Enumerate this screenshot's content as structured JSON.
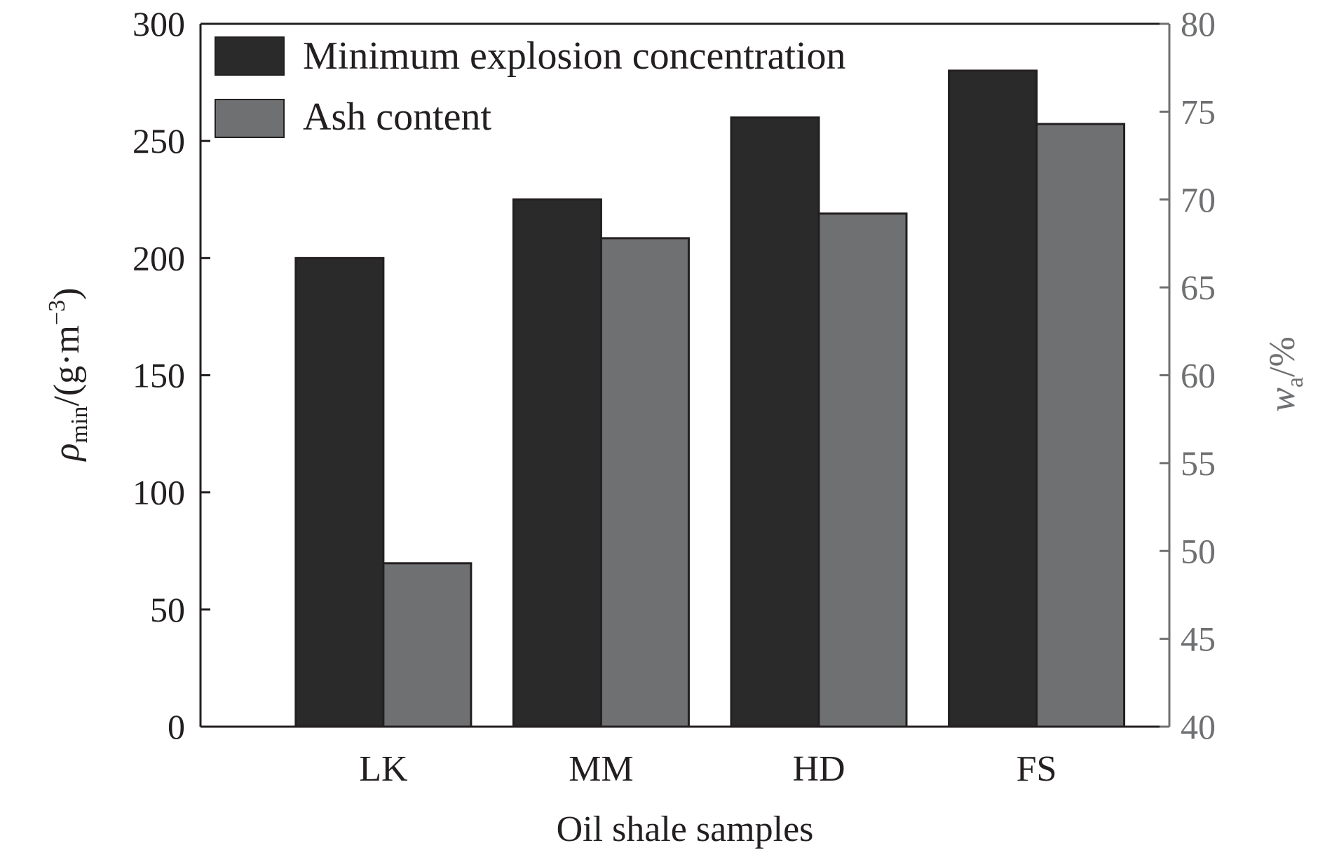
{
  "chart_data": {
    "type": "bar",
    "categories": [
      "LK",
      "MM",
      "HD",
      "FS"
    ],
    "series": [
      {
        "name": "Minimum explosion concentration",
        "axis": "left",
        "color": "#2b2a2b",
        "values": [
          200,
          225,
          260,
          280
        ]
      },
      {
        "name": "Ash content",
        "axis": "right",
        "color": "#6f7072",
        "values": [
          49.3,
          67.8,
          69.2,
          74.3
        ]
      }
    ],
    "xlabel": "Oil shale samples",
    "ylabel_left": {
      "symbol": "ρ",
      "sub": "min",
      "rest": "/(g·m",
      "sup": "−3",
      "close": ")"
    },
    "ylabel_right": {
      "symbol": "w",
      "sub": "a",
      "rest": "/%"
    },
    "ylim_left": [
      0,
      300
    ],
    "yticks_left": [
      "0",
      "50",
      "100",
      "150",
      "200",
      "250",
      "300"
    ],
    "ylim_right": [
      40,
      80
    ],
    "yticks_right": [
      "40",
      "45",
      "50",
      "55",
      "60",
      "65",
      "70",
      "75",
      "80"
    ],
    "legend_position": "top-left",
    "grid": false,
    "right_axis_color": "#6f7072"
  }
}
